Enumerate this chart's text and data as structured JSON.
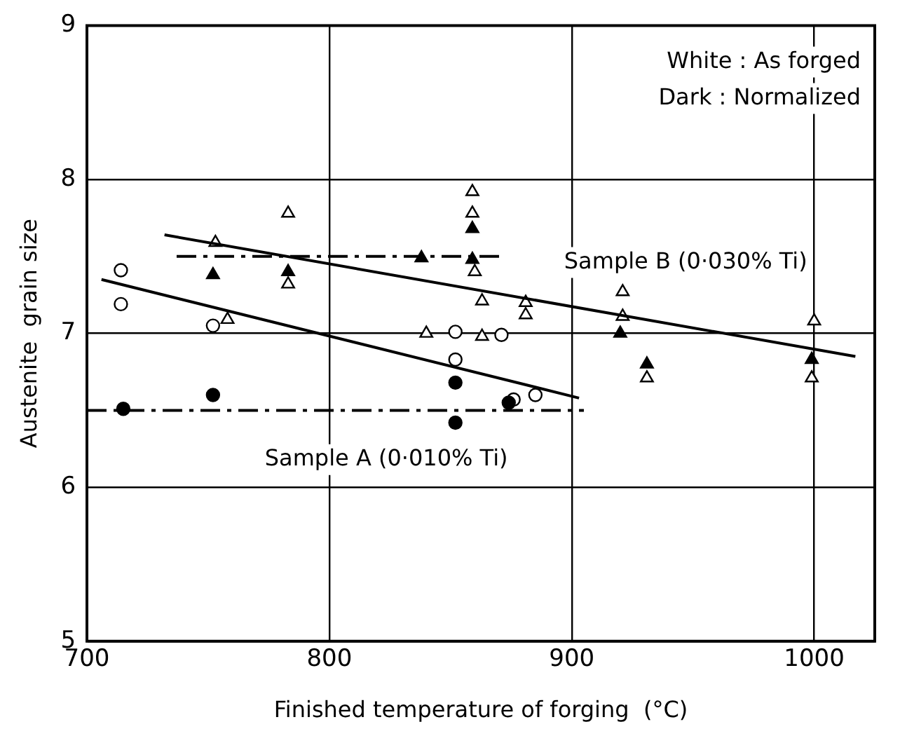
{
  "chart_data": {
    "type": "scatter",
    "xlabel": "Finished temperature of forging  (°C)",
    "ylabel": "Austenite  grain size",
    "xlim": [
      700,
      1025
    ],
    "xticks": [
      700,
      800,
      900,
      1000
    ],
    "ylim": [
      5,
      9
    ],
    "yticks": [
      5,
      6,
      7,
      8,
      9
    ],
    "grid": true,
    "legend": false,
    "series": [
      {
        "color": "#ffffff",
        "marker": "circle",
        "x": [
          714,
          714,
          752,
          852,
          852,
          871,
          876,
          885
        ],
        "values": [
          7.41,
          7.19,
          7.05,
          7.01,
          6.83,
          6.99,
          6.57,
          6.6
        ]
      },
      {
        "color": "#000000",
        "marker": "circle",
        "x": [
          715,
          752,
          852,
          852,
          874
        ],
        "values": [
          6.51,
          6.6,
          6.68,
          6.42,
          6.55
        ]
      },
      {
        "color": "#ffffff",
        "marker": "triangle",
        "x": [
          753,
          758,
          783,
          783,
          840,
          859,
          859,
          860,
          863,
          863,
          881,
          881,
          921,
          921,
          931,
          1000,
          999
        ],
        "values": [
          7.59,
          7.09,
          7.78,
          7.32,
          7.0,
          7.92,
          7.78,
          7.4,
          7.21,
          6.98,
          7.2,
          7.12,
          7.27,
          7.11,
          6.71,
          7.08,
          6.71
        ]
      },
      {
        "color": "#000000",
        "marker": "triangle",
        "x": [
          752,
          783,
          838,
          859,
          859,
          920,
          931,
          999
        ],
        "values": [
          7.38,
          7.4,
          7.49,
          7.68,
          7.48,
          7.0,
          6.8,
          6.83
        ]
      },
      {
        "type": "line",
        "color": "#000000",
        "marker": "none",
        "line_style": "solid",
        "x": [
          732,
          1017
        ],
        "values": [
          7.64,
          6.85
        ]
      },
      {
        "type": "line",
        "color": "#000000",
        "marker": "none",
        "line_style": "solid",
        "x": [
          706,
          903
        ],
        "values": [
          7.35,
          6.58
        ]
      },
      {
        "type": "line",
        "color": "#000000",
        "marker": "none",
        "line_style": "dashed",
        "x": [
          737,
          872
        ],
        "values": [
          7.5,
          7.5
        ]
      },
      {
        "type": "line",
        "color": "#000000",
        "marker": "none",
        "line_style": "dashed",
        "x": [
          700,
          905
        ],
        "values": [
          6.5,
          6.5
        ]
      }
    ],
    "annotations": [
      "Sample B (0·030% Ti)",
      "Sample A (0·010% Ti)",
      "White : As forged",
      "Dark : Normalized"
    ]
  }
}
